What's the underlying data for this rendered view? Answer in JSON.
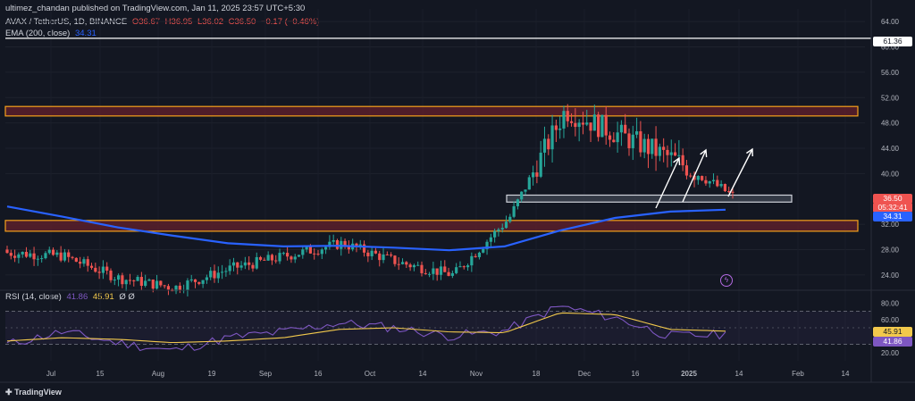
{
  "header": {
    "published": "ultimez_chandan published on TradingView.com, Jan 11, 2025 23:57 UTC+5:30",
    "symbol": "AVAX / TetherUS, 1D, BINANCE",
    "ohlc": {
      "o": "O36.67",
      "h": "H36.95",
      "l": "L36.02",
      "c": "C36.50",
      "chg": "−0.17 (−0.46%)"
    },
    "ema_label": "EMA (200, close)",
    "ema_value": "34.31",
    "rsi_label": "RSI (14, close)",
    "rsi_value": "41.86",
    "rsi_ma": "45.91",
    "rsi_extra": "Ø Ø"
  },
  "price_axis": [
    "64.00",
    "60.00",
    "56.00",
    "52.00",
    "48.00",
    "44.00",
    "40.00",
    "32.00",
    "28.00",
    "24.00"
  ],
  "rsi_axis": [
    "80.00",
    "60.00",
    "20.00"
  ],
  "tags": {
    "hline": "61.36",
    "last_price": "36.50",
    "countdown": "05:32:41",
    "ema": "34.31",
    "rsi_ma": "45.91",
    "rsi": "41.86"
  },
  "time_axis": [
    "Jul",
    "15",
    "Aug",
    "19",
    "Sep",
    "16",
    "Oct",
    "14",
    "Nov",
    "18",
    "Dec",
    "16",
    "2025",
    "14",
    "Feb",
    "14"
  ],
  "footer": {
    "logo_text": "TradingView"
  },
  "colors": {
    "up": "#26a69a",
    "down": "#ef5350",
    "ema": "#2962ff",
    "rsi": "#7e57c2",
    "rsi_ma": "#f2c94c",
    "zone_border": "#f7a21b",
    "zone_fill": "#5b1f2a",
    "support_border": "#cfd2da"
  },
  "chart_data": {
    "type": "line",
    "title": "AVAX / TetherUS, 1D, BINANCE",
    "x": [
      "Jul",
      "15",
      "Aug",
      "19",
      "Sep",
      "16",
      "Oct",
      "14",
      "Nov",
      "18",
      "Dec",
      "16",
      "2025",
      "14"
    ],
    "ylim": [
      22,
      66
    ],
    "series": [
      {
        "name": "Close",
        "values": [
          27.5,
          27.0,
          23.5,
          22.0,
          25.0,
          27.0,
          29.0,
          26.0,
          24.0,
          33.0,
          50.0,
          46.0,
          42.0,
          36.5
        ]
      },
      {
        "name": "EMA (200, close)",
        "values": [
          34.8,
          33.2,
          31.5,
          30.2,
          29.0,
          28.5,
          28.6,
          28.3,
          27.9,
          28.5,
          31.0,
          33.0,
          34.0,
          34.3
        ]
      }
    ],
    "levels": [
      {
        "label": "61.36",
        "y": 61.36
      },
      {
        "label": "resistance zone",
        "y_range": [
          49.1,
          50.6
        ]
      },
      {
        "label": "support zone",
        "y_range": [
          35.5,
          36.6
        ]
      },
      {
        "label": "demand zone",
        "y_range": [
          30.9,
          32.6
        ]
      }
    ],
    "rsi": {
      "name": "RSI (14, close)",
      "ylim": [
        10,
        90
      ],
      "bands": [
        70,
        30
      ],
      "values": [
        30,
        45,
        32,
        22,
        38,
        45,
        56,
        50,
        40,
        46,
        76,
        62,
        40,
        41.86
      ],
      "ma_values": [
        34,
        38,
        36,
        32,
        34,
        38,
        48,
        50,
        45,
        44,
        68,
        66,
        48,
        45.91
      ]
    },
    "grid": true
  }
}
